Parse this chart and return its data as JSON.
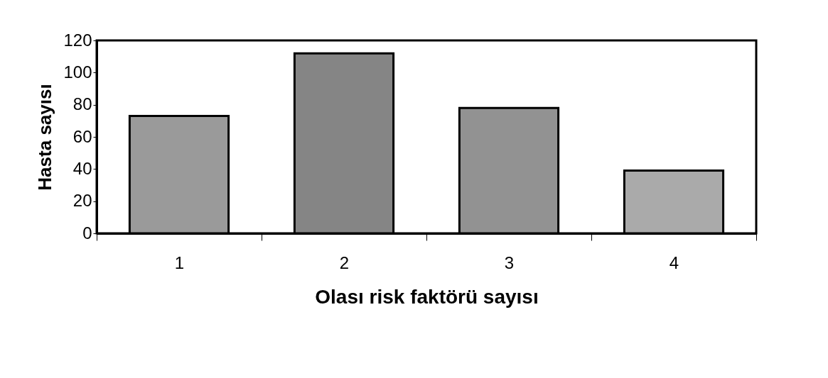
{
  "chart_data": {
    "type": "bar",
    "xlabel": "Olası risk faktörü sayısı",
    "ylabel": "Hasta sayısı",
    "categories": [
      "1",
      "2",
      "3",
      "4"
    ],
    "values": [
      73,
      112,
      78,
      39
    ],
    "colors": [
      "#9a9a9a",
      "#858585",
      "#929292",
      "#aaaaaa"
    ],
    "ylim": [
      0,
      120
    ],
    "yticks": [
      0,
      20,
      40,
      60,
      80,
      100,
      120
    ],
    "grid": false
  }
}
